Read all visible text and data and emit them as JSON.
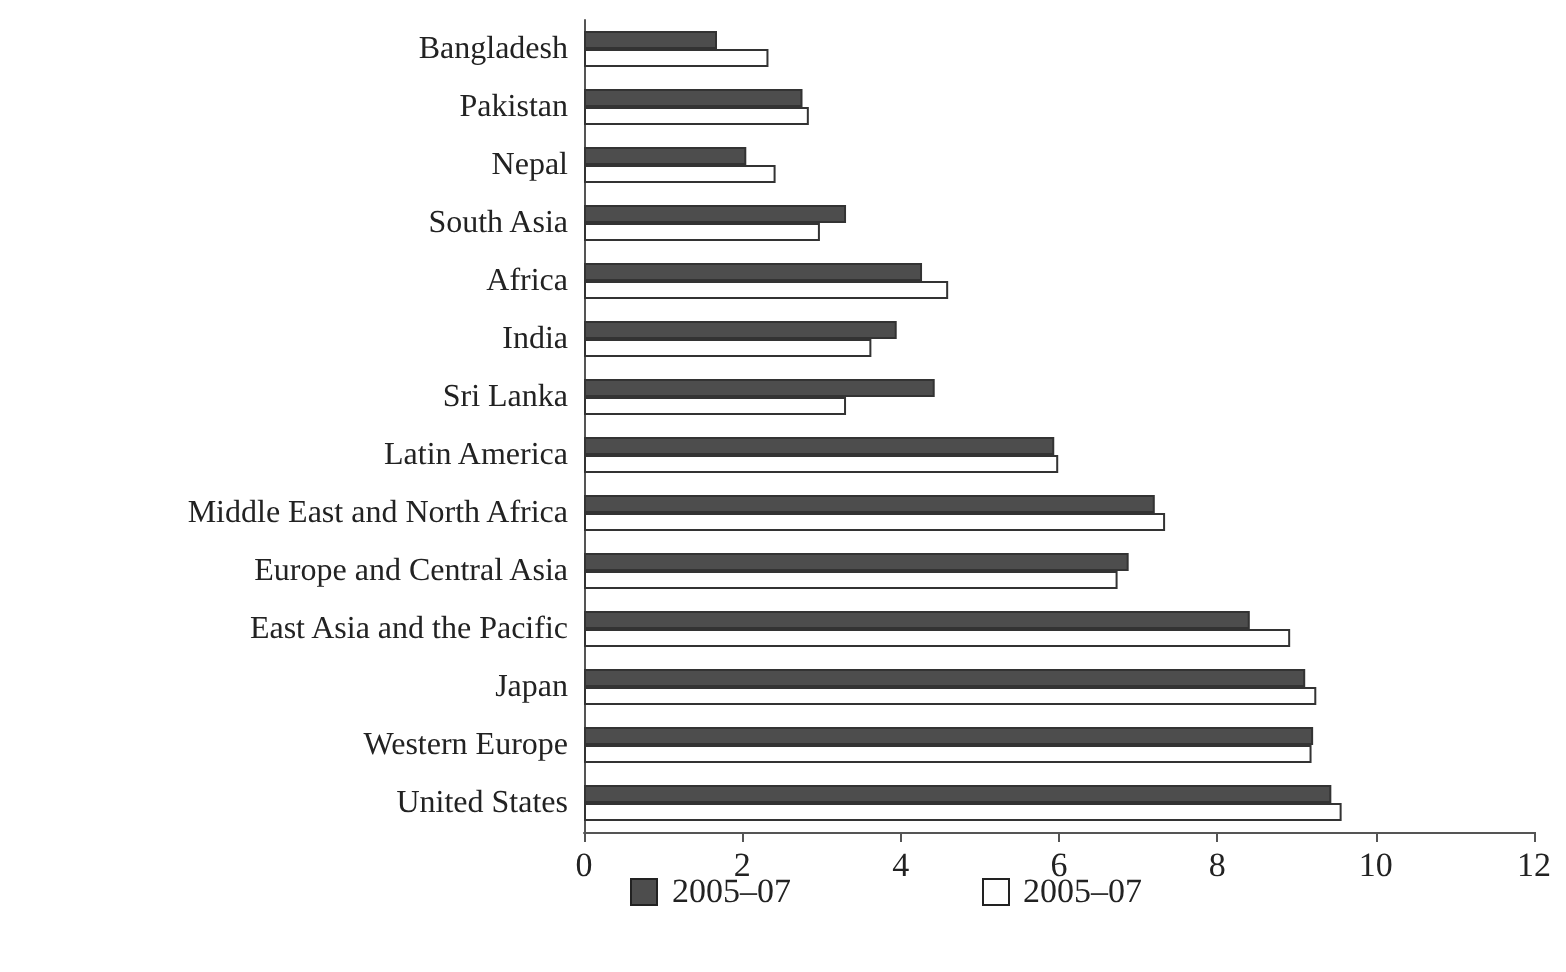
{
  "chart_data": {
    "type": "bar",
    "orientation": "horizontal",
    "categories": [
      "Bangladesh",
      "Pakistan",
      "Nepal",
      "South Asia",
      "Africa",
      "India",
      "Sri Lanka",
      "Latin America",
      "Middle East and North Africa",
      "Europe and Central Asia",
      "East Asia and the Pacific",
      "Japan",
      "Western Europe",
      "United States"
    ],
    "series": [
      {
        "name": "2005–07",
        "color": "#4d4d4d",
        "values": [
          1.68,
          2.76,
          2.05,
          3.31,
          4.27,
          3.95,
          4.43,
          5.94,
          7.21,
          6.88,
          8.41,
          9.11,
          9.21,
          9.44
        ]
      },
      {
        "name": "2005–07",
        "color": "#ffffff",
        "values": [
          2.33,
          2.84,
          2.42,
          2.98,
          4.6,
          3.63,
          3.31,
          5.99,
          7.34,
          6.74,
          8.92,
          9.25,
          9.19,
          9.57
        ]
      }
    ],
    "xlim": [
      0,
      12
    ],
    "xticks": [
      0,
      2,
      4,
      6,
      8,
      10,
      12
    ],
    "grid": false,
    "legend": "bottom"
  }
}
